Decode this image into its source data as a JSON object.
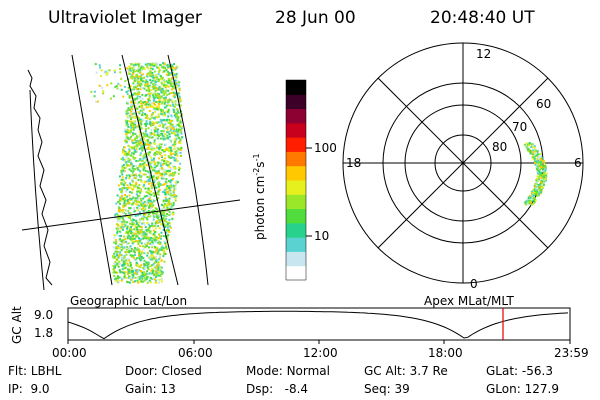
{
  "header": {
    "instrument": "Ultraviolet Imager",
    "date": "28 Jun 00",
    "time": "20:48:40 UT"
  },
  "colorbar": {
    "label": "photon cm",
    "label_sup1": "-2",
    "label_mid": "s",
    "label_sup2": "-1",
    "ticks": [
      {
        "value": 100,
        "label": "100"
      },
      {
        "value": 10,
        "label": "10"
      }
    ],
    "colors": [
      "#ffffff",
      "#c8e6f0",
      "#5ad2d2",
      "#28d28c",
      "#50dc3c",
      "#9ae628",
      "#e6f01e",
      "#ffc800",
      "#ff7800",
      "#ff1e00",
      "#c8001e",
      "#8c0032",
      "#3c0028",
      "#000000"
    ]
  },
  "geo_panel": {
    "caption": "Geographic Lat/Lon"
  },
  "polar_panel": {
    "caption": "Apex MLat/MLT",
    "mlt_labels": {
      "top": "12",
      "left": "18",
      "right": "6",
      "bottom": "0"
    },
    "lat_labels": [
      "60",
      "70",
      "80"
    ]
  },
  "altitude_plot": {
    "ylabel": "GC Alt",
    "yticks": [
      "9.0",
      "1.8"
    ],
    "xticks": [
      "00:00",
      "06:00",
      "12:00",
      "18:00",
      "23:59"
    ],
    "marker_color": "#e00000"
  },
  "status": {
    "col1": [
      {
        "k": "Flt:",
        "v": "LBHL"
      },
      {
        "k": "IP:",
        "v": "9.0"
      }
    ],
    "col2": [
      {
        "k": "Door:",
        "v": "Closed"
      },
      {
        "k": "Gain:",
        "v": "13"
      }
    ],
    "col3": [
      {
        "k": "Mode:",
        "v": "Normal"
      },
      {
        "k": "Dsp:",
        "v": "-8.4"
      }
    ],
    "col4": [
      {
        "k": "GC Alt:",
        "v": "3.7 Re"
      },
      {
        "k": "Seq:",
        "v": "39"
      }
    ],
    "col5": [
      {
        "k": "GLat:",
        "v": "-56.3"
      },
      {
        "k": "GLon:",
        "v": "127.9"
      }
    ]
  }
}
